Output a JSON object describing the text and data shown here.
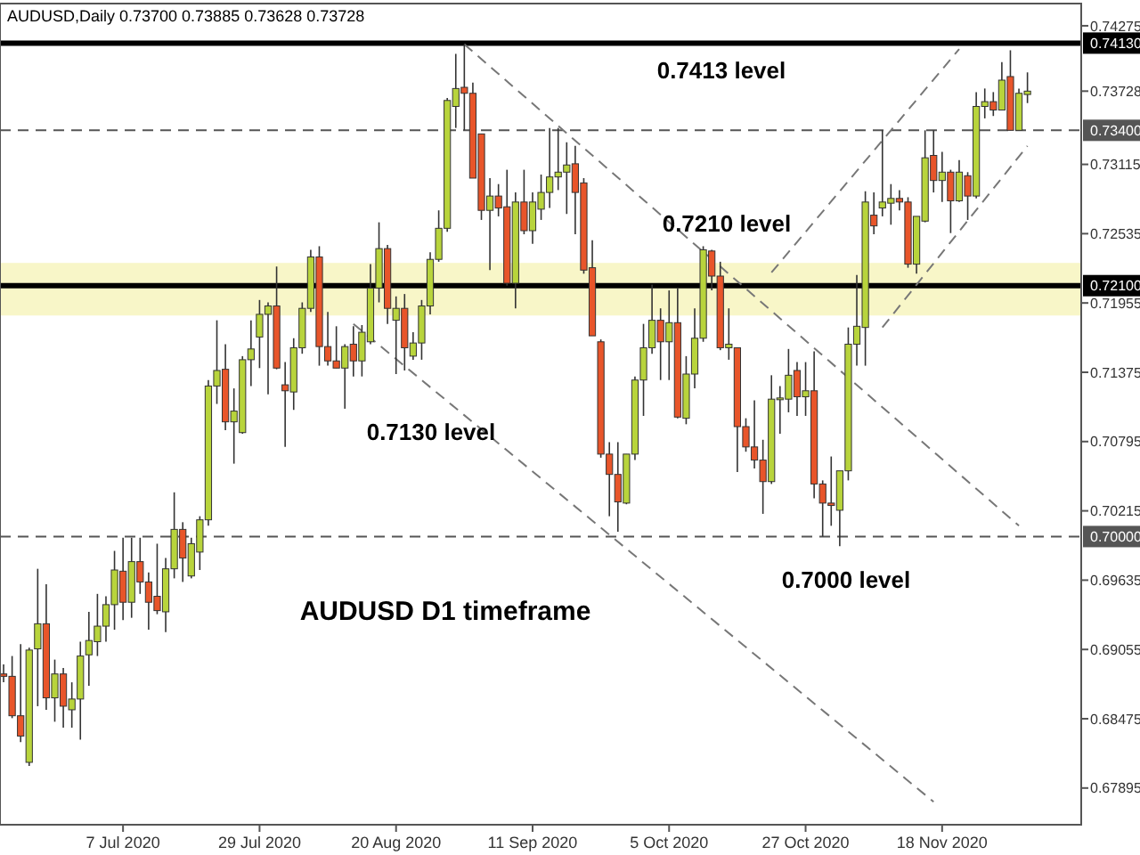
{
  "chart_data": {
    "type": "candlestick",
    "title": "AUDUSD,Daily  0.73700 0.73885 0.73628 0.73728",
    "categories": [
      null,
      null,
      null,
      null,
      null,
      null,
      null,
      null,
      null,
      null,
      null,
      null,
      null,
      null,
      "7 Jul 2020",
      null,
      null,
      null,
      null,
      null,
      null,
      null,
      null,
      null,
      null,
      null,
      null,
      null,
      null,
      null,
      "29 Jul 2020",
      null,
      null,
      null,
      null,
      null,
      null,
      null,
      null,
      null,
      null,
      null,
      null,
      null,
      null,
      null,
      "20 Aug 2020",
      null,
      null,
      null,
      null,
      null,
      null,
      null,
      null,
      null,
      null,
      null,
      null,
      null,
      null,
      null,
      "11 Sep 2020",
      null,
      null,
      null,
      null,
      null,
      null,
      null,
      null,
      null,
      null,
      null,
      null,
      null,
      null,
      null,
      "5 Oct 2020",
      null,
      null,
      null,
      null,
      null,
      null,
      null,
      null,
      null,
      null,
      null,
      null,
      null,
      null,
      null,
      "27 Oct 2020",
      null,
      null,
      null,
      null,
      null,
      null,
      null,
      null,
      null,
      null,
      null,
      null,
      null,
      null,
      null,
      "18 Nov 2020",
      null,
      null,
      null,
      null,
      null,
      null,
      null,
      null,
      null,
      null
    ],
    "ohlc": [
      [
        0.6885,
        0.6893,
        0.6878,
        0.6883
      ],
      [
        0.6883,
        0.69,
        0.6848,
        0.685
      ],
      [
        0.685,
        0.691,
        0.6828,
        0.6833
      ],
      [
        0.6811,
        0.6907,
        0.6808,
        0.6905
      ],
      [
        0.6906,
        0.6973,
        0.6858,
        0.6927
      ],
      [
        0.6927,
        0.696,
        0.6855,
        0.6865
      ],
      [
        0.6865,
        0.6897,
        0.6845,
        0.6885
      ],
      [
        0.6885,
        0.689,
        0.684,
        0.6858
      ],
      [
        0.6855,
        0.6878,
        0.684,
        0.6864
      ],
      [
        0.6864,
        0.6912,
        0.683,
        0.69
      ],
      [
        0.6901,
        0.6937,
        0.6875,
        0.6913
      ],
      [
        0.6912,
        0.6952,
        0.69,
        0.6925
      ],
      [
        0.6925,
        0.695,
        0.6912,
        0.6943
      ],
      [
        0.6943,
        0.6988,
        0.6922,
        0.6972
      ],
      [
        0.6971,
        0.6999,
        0.693,
        0.6945
      ],
      [
        0.6945,
        0.6999,
        0.6932,
        0.6979
      ],
      [
        0.6979,
        0.6999,
        0.6952,
        0.6962
      ],
      [
        0.6962,
        0.697,
        0.6922,
        0.6945
      ],
      [
        0.695,
        0.6994,
        0.6935,
        0.6938
      ],
      [
        0.6937,
        0.6982,
        0.692,
        0.6973
      ],
      [
        0.6973,
        0.7037,
        0.6965,
        0.7006
      ],
      [
        0.7006,
        0.7012,
        0.6962,
        0.6982
      ],
      [
        0.6967,
        0.6999,
        0.6965,
        0.6994
      ],
      [
        0.6987,
        0.7017,
        0.6972,
        0.7014
      ],
      [
        0.7014,
        0.7131,
        0.7009,
        0.7126
      ],
      [
        0.7126,
        0.7181,
        0.7111,
        0.7139
      ],
      [
        0.714,
        0.7161,
        0.7089,
        0.7096
      ],
      [
        0.7096,
        0.7124,
        0.7061,
        0.7105
      ],
      [
        0.7087,
        0.7151,
        0.7086,
        0.7148
      ],
      [
        0.7148,
        0.7181,
        0.7126,
        0.7157
      ],
      [
        0.7167,
        0.7198,
        0.7141,
        0.7186
      ],
      [
        0.7186,
        0.7196,
        0.7119,
        0.7193
      ],
      [
        0.7193,
        0.7226,
        0.714,
        0.7141
      ],
      [
        0.7127,
        0.7146,
        0.7075,
        0.7122
      ],
      [
        0.7121,
        0.7166,
        0.7106,
        0.7158
      ],
      [
        0.7158,
        0.7196,
        0.7153,
        0.7191
      ],
      [
        0.7191,
        0.724,
        0.7188,
        0.7234
      ],
      [
        0.7234,
        0.7243,
        0.7143,
        0.7159
      ],
      [
        0.7159,
        0.7188,
        0.7143,
        0.7147
      ],
      [
        0.7147,
        0.7176,
        0.7141,
        0.7141
      ],
      [
        0.7141,
        0.7161,
        0.7107,
        0.7159
      ],
      [
        0.7161,
        0.7176,
        0.7134,
        0.7147
      ],
      [
        0.7147,
        0.7177,
        0.7134,
        0.7171
      ],
      [
        0.7163,
        0.7228,
        0.7161,
        0.7208
      ],
      [
        0.7208,
        0.7263,
        0.7196,
        0.7241
      ],
      [
        0.7241,
        0.7244,
        0.7178,
        0.7191
      ],
      [
        0.7181,
        0.7201,
        0.7136,
        0.7191
      ],
      [
        0.7191,
        0.7203,
        0.7139,
        0.7158
      ],
      [
        0.7151,
        0.7171,
        0.7148,
        0.7162
      ],
      [
        0.7162,
        0.7198,
        0.7148,
        0.7193
      ],
      [
        0.7193,
        0.7238,
        0.7186,
        0.7232
      ],
      [
        0.7232,
        0.7273,
        0.723,
        0.7258
      ],
      [
        0.7258,
        0.7367,
        0.7255,
        0.7365
      ],
      [
        0.736,
        0.7404,
        0.7342,
        0.7375
      ],
      [
        0.7376,
        0.7412,
        0.734,
        0.7371
      ],
      [
        0.7371,
        0.738,
        0.73,
        0.73
      ],
      [
        0.7337,
        0.7337,
        0.7265,
        0.7273
      ],
      [
        0.7273,
        0.73,
        0.7223,
        0.7285
      ],
      [
        0.7285,
        0.7295,
        0.7268,
        0.7275
      ],
      [
        0.7276,
        0.7307,
        0.721,
        0.7212
      ],
      [
        0.7212,
        0.7288,
        0.7191,
        0.728
      ],
      [
        0.728,
        0.7307,
        0.7253,
        0.7256
      ],
      [
        0.7256,
        0.7288,
        0.7245,
        0.728
      ],
      [
        0.7274,
        0.7303,
        0.7265,
        0.7288
      ],
      [
        0.7288,
        0.7342,
        0.7275,
        0.7301
      ],
      [
        0.7301,
        0.7342,
        0.729,
        0.7305
      ],
      [
        0.7305,
        0.733,
        0.727,
        0.7311
      ],
      [
        0.7312,
        0.7327,
        0.7253,
        0.7288
      ],
      [
        0.7296,
        0.73,
        0.722,
        0.7223
      ],
      [
        0.7225,
        0.7248,
        0.7168,
        0.7168
      ],
      [
        0.7163,
        0.7165,
        0.7066,
        0.7069
      ],
      [
        0.7069,
        0.7079,
        0.7017,
        0.7052
      ],
      [
        0.7052,
        0.7079,
        0.7004,
        0.7029
      ],
      [
        0.7028,
        0.7069,
        0.7027,
        0.7069
      ],
      [
        0.7069,
        0.7134,
        0.7064,
        0.7131
      ],
      [
        0.7131,
        0.7178,
        0.7101,
        0.7158
      ],
      [
        0.7158,
        0.7211,
        0.7153,
        0.7181
      ],
      [
        0.7181,
        0.7191,
        0.7131,
        0.7163
      ],
      [
        0.7163,
        0.7206,
        0.7131,
        0.7179
      ],
      [
        0.7179,
        0.7208,
        0.7099,
        0.71
      ],
      [
        0.7099,
        0.7151,
        0.7094,
        0.7136
      ],
      [
        0.7136,
        0.7191,
        0.7124,
        0.7166
      ],
      [
        0.7166,
        0.7243,
        0.7163,
        0.724
      ],
      [
        0.7239,
        0.724,
        0.7206,
        0.7218
      ],
      [
        0.7218,
        0.723,
        0.7156,
        0.7158
      ],
      [
        0.7158,
        0.7191,
        0.7148,
        0.7161
      ],
      [
        0.7158,
        0.7158,
        0.7054,
        0.7092
      ],
      [
        0.7092,
        0.7099,
        0.7071,
        0.7075
      ],
      [
        0.7075,
        0.7114,
        0.7057,
        0.7064
      ],
      [
        0.7064,
        0.7081,
        0.7019,
        0.7046
      ],
      [
        0.7046,
        0.7135,
        0.7044,
        0.7115
      ],
      [
        0.7115,
        0.7126,
        0.7086,
        0.7116
      ],
      [
        0.7115,
        0.7157,
        0.7104,
        0.7135
      ],
      [
        0.7139,
        0.7146,
        0.7101,
        0.7117
      ],
      [
        0.7117,
        0.7146,
        0.7101,
        0.7122
      ],
      [
        0.7122,
        0.7155,
        0.7032,
        0.7044
      ],
      [
        0.7044,
        0.7047,
        0.7,
        0.7028
      ],
      [
        0.7028,
        0.7067,
        0.7009,
        0.7026
      ],
      [
        0.7022,
        0.7055,
        0.6992,
        0.7055
      ],
      [
        0.7055,
        0.7175,
        0.7047,
        0.7161
      ],
      [
        0.7161,
        0.7219,
        0.7143,
        0.7176
      ],
      [
        0.7175,
        0.7289,
        0.7143,
        0.728
      ],
      [
        0.7269,
        0.7288,
        0.7253,
        0.726
      ],
      [
        0.7275,
        0.734,
        0.7268,
        0.728
      ],
      [
        0.7279,
        0.7295,
        0.7261,
        0.7283
      ],
      [
        0.7283,
        0.729,
        0.7273,
        0.728
      ],
      [
        0.728,
        0.7284,
        0.7225,
        0.7228
      ],
      [
        0.7228,
        0.7268,
        0.722,
        0.7268
      ],
      [
        0.7264,
        0.734,
        0.7263,
        0.7317
      ],
      [
        0.7319,
        0.734,
        0.7288,
        0.7298
      ],
      [
        0.7298,
        0.7322,
        0.728,
        0.7305
      ],
      [
        0.7305,
        0.7307,
        0.7254,
        0.7281
      ],
      [
        0.7281,
        0.7315,
        0.728,
        0.7305
      ],
      [
        0.7302,
        0.7305,
        0.7265,
        0.7285
      ],
      [
        0.7285,
        0.7372,
        0.7283,
        0.736
      ],
      [
        0.736,
        0.7375,
        0.735,
        0.7364
      ],
      [
        0.7364,
        0.7372,
        0.7352,
        0.7357
      ],
      [
        0.7357,
        0.7397,
        0.7357,
        0.7382
      ],
      [
        0.7385,
        0.7407,
        0.734,
        0.734
      ],
      [
        0.734,
        0.7375,
        0.734,
        0.7371
      ],
      [
        0.737,
        0.73885,
        0.73628,
        0.73728
      ]
    ],
    "ylim": [
      0.67588,
      0.74461
    ],
    "yticks": [
      0.74275,
      {
        "value": 0.73728,
        "label": "0.73728"
      },
      0.73115,
      0.72535,
      0.71955,
      0.71375,
      0.70795,
      0.70215,
      0.69635,
      0.69055,
      0.68475,
      0.67895
    ],
    "ref_lines": [
      {
        "axis": "y",
        "value": 0.7413,
        "label": "0.74130",
        "line_style": "solid",
        "color": "#000000"
      },
      {
        "axis": "y",
        "value": 0.734,
        "label": "0.73400",
        "line_style": "dashed",
        "color": "#555555"
      },
      {
        "axis": "y",
        "value": 0.721,
        "label": "0.72100",
        "line_style": "solid",
        "color": "#000000"
      },
      {
        "axis": "y",
        "value": 0.7,
        "label": "0.70000",
        "line_style": "dashed",
        "color": "#555555"
      }
    ],
    "bands": [
      {
        "axis": "y",
        "from": 0.7185,
        "to": 0.7229,
        "color": "#f8f6c8"
      }
    ],
    "series": [
      {
        "type": "line",
        "color": "#777777",
        "line_style": "dashed",
        "values": [
          null,
          null,
          null,
          null,
          null,
          null,
          null,
          null,
          null,
          null,
          null,
          null,
          null,
          null,
          null,
          null,
          null,
          null,
          null,
          null,
          null,
          null,
          null,
          null,
          null,
          null,
          null,
          null,
          null,
          null,
          null,
          null,
          null,
          null,
          null,
          null,
          null,
          null,
          null,
          null,
          null,
          null,
          null,
          null,
          null,
          null,
          null,
          null,
          null,
          null,
          null,
          null,
          null,
          null,
          0.7412,
          null,
          null,
          null,
          null,
          null,
          null,
          null,
          null,
          null,
          null,
          null,
          null,
          null,
          null,
          null,
          null,
          null,
          null,
          null,
          null,
          null,
          null,
          null,
          null,
          null,
          null,
          null,
          null,
          null,
          null,
          null,
          null,
          null,
          null,
          null,
          null,
          null,
          null,
          null,
          null,
          null,
          null,
          null,
          null,
          null,
          null,
          null,
          null,
          null,
          null,
          null,
          null,
          null,
          null,
          null,
          null,
          null,
          null,
          null,
          null,
          null,
          null,
          null,
          null,
          0.7009,
          null
        ]
      },
      {
        "type": "line",
        "color": "#777777",
        "line_style": "dashed",
        "values": [
          null,
          null,
          null,
          null,
          null,
          null,
          null,
          null,
          null,
          null,
          null,
          null,
          null,
          null,
          null,
          null,
          null,
          null,
          null,
          null,
          null,
          null,
          null,
          null,
          null,
          null,
          null,
          null,
          null,
          null,
          null,
          null,
          null,
          null,
          null,
          null,
          null,
          null,
          null,
          null,
          null,
          0.7178,
          null,
          null,
          null,
          null,
          null,
          null,
          null,
          null,
          null,
          null,
          null,
          null,
          null,
          null,
          null,
          null,
          null,
          null,
          null,
          null,
          null,
          null,
          null,
          null,
          null,
          null,
          null,
          null,
          null,
          null,
          null,
          null,
          null,
          null,
          null,
          null,
          null,
          null,
          null,
          null,
          null,
          null,
          null,
          null,
          null,
          null,
          null,
          null,
          null,
          null,
          null,
          null,
          null,
          null,
          null,
          null,
          null,
          null,
          null,
          null,
          null,
          null,
          null,
          null,
          null,
          null,
          null,
          0.6778,
          null,
          null,
          null,
          null,
          null,
          null,
          null,
          null,
          null,
          null,
          null
        ]
      },
      {
        "type": "line",
        "color": "#777777",
        "line_style": "dashed",
        "values": [
          null,
          null,
          null,
          null,
          null,
          null,
          null,
          null,
          null,
          null,
          null,
          null,
          null,
          null,
          null,
          null,
          null,
          null,
          null,
          null,
          null,
          null,
          null,
          null,
          null,
          null,
          null,
          null,
          null,
          null,
          null,
          null,
          null,
          null,
          null,
          null,
          null,
          null,
          null,
          null,
          null,
          null,
          null,
          null,
          null,
          null,
          null,
          null,
          null,
          null,
          null,
          null,
          null,
          null,
          null,
          null,
          null,
          null,
          null,
          null,
          null,
          null,
          null,
          null,
          null,
          null,
          null,
          null,
          null,
          null,
          null,
          null,
          null,
          null,
          null,
          null,
          null,
          null,
          null,
          null,
          null,
          null,
          null,
          null,
          null,
          null,
          null,
          null,
          null,
          null,
          0.7221,
          null,
          null,
          null,
          null,
          null,
          null,
          null,
          null,
          null,
          null,
          null,
          null,
          null,
          null,
          null,
          null,
          null,
          null,
          null,
          null,
          null,
          0.7408,
          null,
          null,
          null,
          null,
          null,
          null,
          null,
          null
        ]
      },
      {
        "type": "line",
        "color": "#777777",
        "line_style": "dashed",
        "values": [
          null,
          null,
          null,
          null,
          null,
          null,
          null,
          null,
          null,
          null,
          null,
          null,
          null,
          null,
          null,
          null,
          null,
          null,
          null,
          null,
          null,
          null,
          null,
          null,
          null,
          null,
          null,
          null,
          null,
          null,
          null,
          null,
          null,
          null,
          null,
          null,
          null,
          null,
          null,
          null,
          null,
          null,
          null,
          null,
          null,
          null,
          null,
          null,
          null,
          null,
          null,
          null,
          null,
          null,
          null,
          null,
          null,
          null,
          null,
          null,
          null,
          null,
          null,
          null,
          null,
          null,
          null,
          null,
          null,
          null,
          null,
          null,
          null,
          null,
          null,
          null,
          null,
          null,
          null,
          null,
          null,
          null,
          null,
          null,
          null,
          null,
          null,
          null,
          null,
          null,
          null,
          null,
          null,
          null,
          null,
          null,
          null,
          null,
          null,
          null,
          null,
          null,
          null,
          0.7175,
          null,
          null,
          null,
          null,
          null,
          null,
          null,
          null,
          null,
          null,
          null,
          null,
          null,
          null,
          null,
          null,
          0.7327
        ]
      }
    ],
    "annotations": [
      "0.7413 level",
      "0.7210 level",
      "0.7130 level",
      "0.7000 level",
      "AUDUSD D1 timeframe"
    ]
  }
}
